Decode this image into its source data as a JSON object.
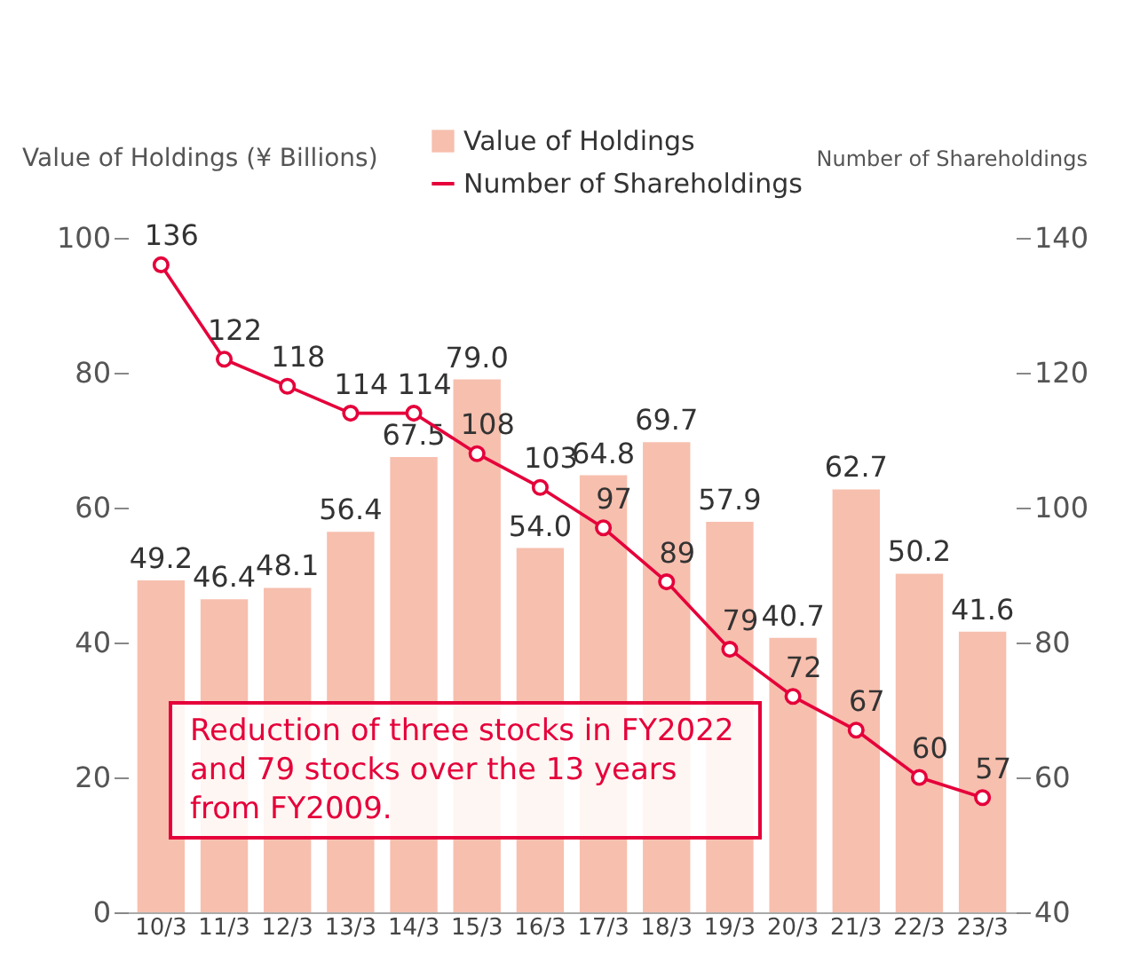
{
  "chart_data": {
    "type": "bar",
    "ylabel": "Value of Holdings (¥ Billions)",
    "y2label": "Number of Shareholdings",
    "categories": [
      "10/3",
      "11/3",
      "12/3",
      "13/3",
      "14/3",
      "15/3",
      "16/3",
      "17/3",
      "18/3",
      "19/3",
      "20/3",
      "21/3",
      "22/3",
      "23/3"
    ],
    "series": [
      {
        "name": "Value of Holdings",
        "color": "#f7bfae",
        "values": [
          49.2,
          46.4,
          48.1,
          56.4,
          67.5,
          79.0,
          54.0,
          64.8,
          69.7,
          57.9,
          40.7,
          62.7,
          50.2,
          41.6
        ],
        "value_labels": [
          "49.2",
          "46.4",
          "48.1",
          "56.4",
          "67.5",
          "79.0",
          "54.0",
          "64.8",
          "69.7",
          "57.9",
          "40.7",
          "62.7",
          "50.2",
          "41.6"
        ]
      },
      {
        "name": "Number of Shareholdings",
        "type": "line",
        "axis": "y2",
        "color": "#e5003a",
        "marker": "circle",
        "values": [
          136,
          122,
          118,
          114,
          114,
          108,
          103,
          97,
          89,
          79,
          72,
          67,
          60,
          57
        ],
        "value_labels": [
          "136",
          "122",
          "118",
          "114",
          "114",
          "108",
          "103",
          "97",
          "89",
          "79",
          "72",
          "67",
          "60",
          "57"
        ]
      }
    ],
    "ylim": [
      0,
      100
    ],
    "yticks": [
      0,
      20,
      40,
      60,
      80,
      100
    ],
    "y2lim": [
      40,
      140
    ],
    "y2ticks": [
      40,
      60,
      80,
      100,
      120,
      140
    ],
    "legend": "top right",
    "grid": false,
    "annotations": [
      "Reduction of three stocks in FY2022 and 79 stocks over the 13 years from FY2009."
    ]
  }
}
